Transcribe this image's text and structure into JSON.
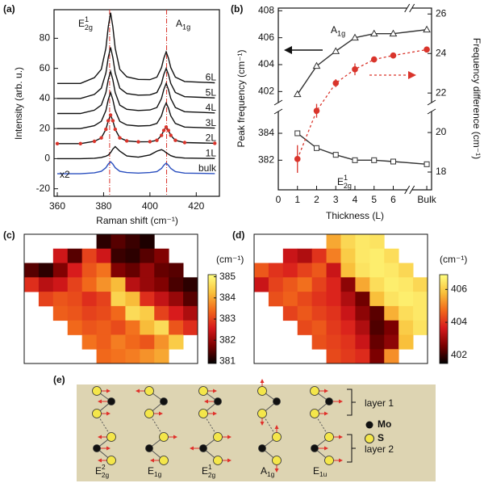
{
  "chart_data": [
    {
      "type": "line",
      "panel": "(a)",
      "xlabel": "Raman shift (cm⁻¹)",
      "ylabel": "Intensity (arb. u.)",
      "x": [
        360,
        370,
        376,
        379,
        381,
        382,
        383,
        384,
        385,
        387,
        390,
        395,
        400,
        403,
        405,
        406,
        407,
        408,
        409,
        411,
        415,
        428
      ],
      "xlim": [
        358.6,
        430
      ],
      "xticks": [
        360,
        380,
        400,
        420
      ],
      "ylim": [
        -25,
        99
      ],
      "yticks": [
        -20,
        0,
        20,
        40,
        60,
        80
      ],
      "series": [
        {
          "name": "6L",
          "color": "#111111",
          "values": [
            50,
            50,
            53.8,
            59.4,
            73.5,
            87.6,
            97,
            87.6,
            73.5,
            59.4,
            54.4,
            52.7,
            52.5,
            54.2,
            60.5,
            66.8,
            71,
            66.8,
            60.5,
            54.2,
            51.3,
            50.4
          ]
        },
        {
          "name": "5L",
          "color": "#111111",
          "values": [
            40,
            40,
            42.7,
            46.8,
            57,
            67.2,
            74,
            67.2,
            57,
            46.8,
            43.3,
            42.2,
            42.4,
            44,
            50,
            56,
            60,
            56,
            50,
            44,
            41.2,
            40.4
          ]
        },
        {
          "name": "4L",
          "color": "#111111",
          "values": [
            30,
            30,
            32.2,
            35.6,
            44,
            52.4,
            58,
            52.4,
            44,
            35.6,
            32.8,
            32,
            32.4,
            34,
            40,
            46,
            50,
            46,
            40,
            34,
            31.2,
            30.4
          ]
        },
        {
          "name": "3L",
          "color": "#111111",
          "values": [
            20,
            20,
            21.9,
            24.8,
            32,
            39.2,
            44,
            39.2,
            32,
            24.8,
            22.4,
            21.7,
            22,
            23.4,
            28.5,
            33.6,
            37,
            33.6,
            28.5,
            23.4,
            21,
            20.3
          ]
        },
        {
          "name": "2L",
          "color": "#111111",
          "marker": "circle",
          "marker_color": "#d9342b",
          "values": [
            10,
            10,
            11.5,
            13.8,
            19.5,
            25.2,
            29,
            25.2,
            19.5,
            13.8,
            11.8,
            11.2,
            11.3,
            12.2,
            15.5,
            18.8,
            21,
            18.8,
            15.5,
            12.2,
            10.7,
            10.2
          ]
        },
        {
          "name": "1L",
          "color": "#111111",
          "values": [
            0,
            0,
            0.3,
            0.8,
            1.6,
            2.4,
            4,
            6.4,
            8,
            5,
            1.8,
            1,
            2.5,
            5,
            6,
            5.2,
            4,
            3,
            2,
            1,
            0.4,
            0.1
          ]
        },
        {
          "name": "bulk",
          "color": "#2a4fbf",
          "values": [
            -10,
            -10,
            -9.4,
            -8.4,
            -6,
            -3.6,
            -2,
            -3.6,
            -6,
            -8.4,
            -9.2,
            -9.6,
            -9.2,
            -8.6,
            -6.5,
            -4.4,
            -3,
            -4.4,
            -6.5,
            -8.6,
            -9.6,
            -9.9
          ]
        }
      ],
      "vlines": [
        382.6,
        407.2
      ],
      "vline_color": "#d9342b",
      "peak_labels": [
        {
          "main": "E",
          "sup": "1",
          "sub": "2g"
        },
        {
          "main": "A",
          "sub": "1g"
        }
      ],
      "notes": [
        {
          "text": "x2",
          "color": "#2a4fbf"
        }
      ]
    },
    {
      "type": "line",
      "panel": "(b)",
      "xlabel": "Thickness (L)",
      "ylabel": "Peak frequency (cm⁻¹)",
      "y2label": "Frequency difference (cm⁻¹)",
      "x": [
        1,
        2,
        3,
        4,
        5,
        6,
        7.75
      ],
      "xlim": [
        0,
        8
      ],
      "xticks": [
        0,
        1,
        2,
        3,
        4,
        5,
        6,
        {
          "value": 7.75,
          "label": "Bulk"
        }
      ],
      "xbreak": 6.85,
      "ylim": [
        379.8,
        408.2
      ],
      "ybreak": [
        385.5,
        401.3
      ],
      "yticks": [
        382,
        384,
        402,
        404,
        406,
        408
      ],
      "y2lim": [
        17.1,
        26.3
      ],
      "y2ticks": [
        18,
        20,
        22,
        24,
        26
      ],
      "series": [
        {
          "color": "#333333",
          "marker": "triangle",
          "values": [
            401.8,
            403.9,
            405.0,
            406.0,
            406.3,
            406.3,
            406.6
          ]
        },
        {
          "color": "#333333",
          "marker": "square",
          "values": [
            384.0,
            382.9,
            382.4,
            382.0,
            382.0,
            381.9,
            381.7
          ]
        },
        {
          "color": "#d9342b",
          "marker": "circle",
          "dash": true,
          "axis": "y2",
          "values": [
            18.66,
            21.1,
            22.5,
            23.2,
            23.7,
            23.9,
            24.2
          ],
          "errors": [
            0.7,
            0.35,
            0.2,
            0.3,
            0.15,
            0.15,
            0.15
          ]
        }
      ],
      "peak_labels": [
        {
          "main": "A",
          "sub": "1g"
        },
        {
          "main": "E",
          "sup": "1",
          "sub": "2g"
        }
      ]
    },
    {
      "type": "heatmap",
      "panel": "(c)",
      "colorbar_label": "(cm⁻¹)",
      "colormap": [
        "#000000",
        "#7a0000",
        "#d7191c",
        "#f26a1b",
        "#f9c23c",
        "#ffff80"
      ],
      "zlim": [
        380.9,
        385.1
      ],
      "zticks": [
        381,
        382,
        383,
        384,
        385
      ],
      "z": [
        [
          null,
          null,
          null,
          null,
          null,
          381.2,
          381.5,
          381.3,
          381.1,
          null,
          null,
          null
        ],
        [
          null,
          null,
          382.5,
          381.5,
          383,
          382.5,
          381.3,
          381.2,
          381.5,
          381.8,
          null,
          null
        ],
        [
          381.5,
          381.2,
          381.8,
          382.6,
          383.2,
          383.5,
          381.8,
          381.6,
          382,
          381.6,
          381.5,
          null
        ],
        [
          382.8,
          382.3,
          382.5,
          383,
          383.4,
          383.8,
          384.2,
          382.3,
          382,
          381.8,
          381.4,
          381.2
        ],
        [
          null,
          383,
          383.2,
          383.1,
          382.8,
          383,
          384.5,
          384.2,
          382.8,
          382.4,
          382,
          381.5
        ],
        [
          null,
          null,
          383.3,
          383.2,
          383,
          383.1,
          383.4,
          384.6,
          384.4,
          383,
          382.6,
          382.2
        ],
        [
          null,
          null,
          null,
          383.4,
          383.2,
          383.3,
          383.1,
          383.5,
          384.2,
          384.6,
          383.2,
          382.8
        ],
        [
          null,
          null,
          null,
          null,
          383.5,
          383.3,
          383.6,
          383.4,
          383.2,
          383.8,
          384.4,
          null
        ],
        [
          null,
          null,
          null,
          null,
          null,
          383.4,
          383.5,
          383.6,
          383.8,
          384,
          null,
          null
        ]
      ]
    },
    {
      "type": "heatmap",
      "panel": "(d)",
      "colorbar_label": "(cm⁻¹)",
      "colormap": [
        "#000000",
        "#7a0000",
        "#d7191c",
        "#f26a1b",
        "#f9c23c",
        "#ffff80"
      ],
      "zlim": [
        401.5,
        406.9
      ],
      "zticks": [
        402,
        404,
        406
      ],
      "z": [
        [
          null,
          null,
          null,
          null,
          null,
          405.5,
          406.2,
          406.5,
          406.4,
          null,
          null,
          null
        ],
        [
          null,
          null,
          403.5,
          403.2,
          404,
          405,
          406,
          406.5,
          406.6,
          406.3,
          null,
          null
        ],
        [
          404.5,
          404,
          403.8,
          404.2,
          404.5,
          403.5,
          405.8,
          406.4,
          406.6,
          406.5,
          406.2,
          null
        ],
        [
          403.5,
          404.2,
          404.5,
          404.8,
          404.2,
          403.8,
          402.8,
          405.5,
          406.3,
          406.6,
          406.5,
          406.2
        ],
        [
          null,
          404.4,
          404.6,
          404.3,
          404,
          403.8,
          403.2,
          402.5,
          405.8,
          406.4,
          406.6,
          406.5
        ],
        [
          null,
          null,
          404.2,
          404.5,
          404.2,
          404,
          403.5,
          402.8,
          402.3,
          405.6,
          406.3,
          406.5
        ],
        [
          null,
          null,
          null,
          404.3,
          404.5,
          404.1,
          403.8,
          403.2,
          402.2,
          402.6,
          406,
          406.4
        ],
        [
          null,
          null,
          null,
          null,
          404.4,
          404.2,
          404,
          403.5,
          402.4,
          402.8,
          405.8,
          null
        ],
        [
          null,
          null,
          null,
          null,
          null,
          404.3,
          404.1,
          403.9,
          402.6,
          405.2,
          null,
          null
        ]
      ]
    }
  ],
  "diagram": {
    "panel": "(e)",
    "modes": [
      {
        "main": "E",
        "sup": "2",
        "sub": "2g"
      },
      {
        "main": "E",
        "sub": "1g"
      },
      {
        "main": "E",
        "sup": "1",
        "sub": "2g"
      },
      {
        "main": "A",
        "sub": "1g"
      },
      {
        "main": "E",
        "sub": "1u"
      }
    ],
    "layers": [
      "layer 1",
      "layer 2"
    ],
    "legend": [
      "Mo",
      "S"
    ]
  }
}
